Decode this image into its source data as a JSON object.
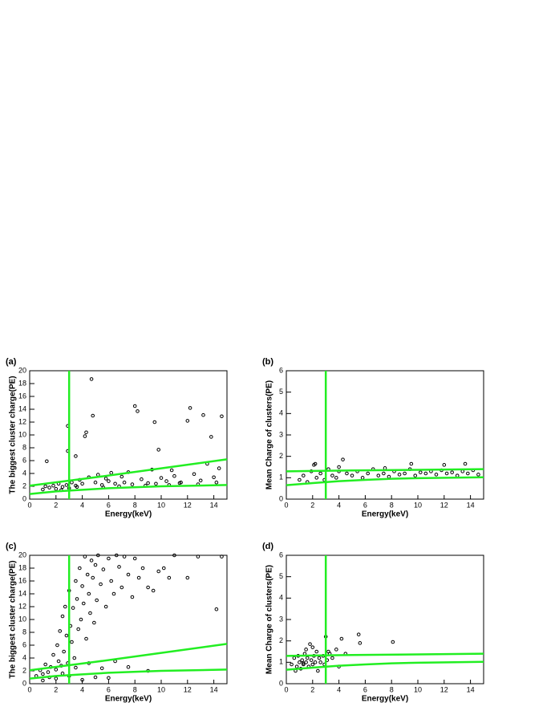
{
  "chart_data": [
    {
      "type": "scatter",
      "label": "(a)",
      "xlabel": "Energy(keV)",
      "ylabel": "The biggest cluster charge(PE)",
      "xlim": [
        0,
        15
      ],
      "ylim": [
        0,
        20
      ],
      "xticks": [
        0,
        2,
        4,
        6,
        8,
        10,
        12,
        14
      ],
      "yticks": [
        0,
        2,
        4,
        6,
        8,
        10,
        12,
        14,
        16,
        18,
        20
      ],
      "points": {
        "color": "#000000",
        "x": [
          1,
          1.5,
          1.8,
          2,
          2.2,
          2.5,
          2.8,
          3,
          3.2,
          3.5,
          3.8,
          4,
          4.2,
          4.3,
          4.5,
          4.7,
          4.8,
          5,
          5.2,
          5.5,
          5.8,
          6,
          6.2,
          6.5,
          7,
          7.2,
          7.5,
          8,
          8.2,
          8.5,
          9,
          9.3,
          9.5,
          10,
          10.4,
          10.8,
          11,
          11.5,
          12,
          12.2,
          12.5,
          13,
          13.5,
          13.8,
          14,
          14.4,
          14.6,
          2.9,
          2.9,
          1.3,
          3.5,
          9.8,
          13.2,
          1.2,
          2.4,
          3.6,
          5.6,
          6.8,
          7.8,
          8.8,
          9.6,
          10.6,
          11.4,
          12.8,
          14.2
        ],
        "y": [
          1.5,
          1.8,
          2.1,
          1.6,
          2.4,
          1.9,
          2.2,
          1.7,
          2.6,
          2.1,
          3.0,
          2.4,
          9.8,
          10.4,
          3.4,
          18.7,
          13,
          2.6,
          3.8,
          2.2,
          3.2,
          2.8,
          4.1,
          2.4,
          3.5,
          2.6,
          4.2,
          14.5,
          13.7,
          3.1,
          2.5,
          4.6,
          12,
          3.3,
          2.8,
          4.5,
          3.6,
          2.6,
          12.2,
          14.2,
          3.9,
          2.9,
          5.5,
          9.7,
          3.4,
          4.8,
          12.9,
          11.4,
          7.5,
          5.9,
          6.7,
          7.7,
          13.1,
          2.0,
          1.4,
          1.9,
          1.8,
          2.0,
          2.3,
          2.1,
          2.4,
          2.2,
          2.5,
          2.3,
          2.6
        ]
      },
      "lines": [
        {
          "color": "#22ee22",
          "x": [
            3,
            3
          ],
          "y": [
            0,
            20
          ]
        },
        {
          "color": "#22ee22",
          "x": [
            0,
            5,
            10,
            15
          ],
          "y": [
            2.1,
            3.4,
            4.8,
            6.2
          ]
        },
        {
          "color": "#22ee22",
          "x": [
            0,
            2,
            4,
            6,
            10,
            15
          ],
          "y": [
            0.8,
            1.2,
            1.45,
            1.7,
            2.0,
            2.2
          ]
        }
      ]
    },
    {
      "type": "scatter",
      "label": "(b)",
      "xlabel": "Energy(keV)",
      "ylabel": "Mean Charge of clusters(PE)",
      "xlim": [
        0,
        15
      ],
      "ylim": [
        0,
        6
      ],
      "xticks": [
        0,
        2,
        4,
        6,
        8,
        10,
        12,
        14
      ],
      "yticks": [
        0,
        1,
        2,
        3,
        4,
        5,
        6
      ],
      "points": {
        "color": "#000000",
        "x": [
          1,
          1.3,
          1.6,
          1.9,
          2.1,
          2.3,
          2.6,
          2.9,
          3.2,
          3.5,
          3.8,
          4,
          4.3,
          4.6,
          5,
          5.4,
          5.8,
          6.2,
          6.6,
          7,
          7.4,
          7.8,
          8.2,
          8.6,
          9,
          9.4,
          9.8,
          10.2,
          10.6,
          11,
          11.4,
          11.8,
          12.2,
          12.6,
          13,
          13.4,
          13.8,
          14.2,
          14.6,
          2.2,
          4,
          7.5,
          9.5,
          12,
          13.6
        ],
        "y": [
          0.9,
          1.1,
          0.8,
          1.3,
          1.6,
          1.0,
          1.2,
          0.9,
          1.4,
          1.1,
          1.0,
          1.3,
          1.85,
          1.2,
          1.1,
          1.3,
          1.0,
          1.2,
          1.4,
          1.1,
          1.2,
          1.05,
          1.3,
          1.15,
          1.2,
          1.4,
          1.1,
          1.25,
          1.2,
          1.3,
          1.15,
          1.35,
          1.2,
          1.25,
          1.1,
          1.3,
          1.2,
          1.35,
          1.15,
          1.65,
          1.5,
          1.45,
          1.65,
          1.6,
          1.65
        ]
      },
      "lines": [
        {
          "color": "#22ee22",
          "x": [
            3,
            3
          ],
          "y": [
            0,
            6
          ]
        },
        {
          "color": "#22ee22",
          "x": [
            0,
            5,
            10,
            15
          ],
          "y": [
            1.3,
            1.34,
            1.37,
            1.4
          ]
        },
        {
          "color": "#22ee22",
          "x": [
            0,
            2,
            4,
            6,
            8,
            10,
            15
          ],
          "y": [
            0.65,
            0.75,
            0.84,
            0.9,
            0.95,
            0.98,
            1.02
          ]
        }
      ]
    },
    {
      "type": "scatter",
      "label": "(c)",
      "xlabel": "Energy(keV)",
      "ylabel": "The biggest cluster charge(PE)",
      "xlim": [
        0,
        15
      ],
      "ylim": [
        0,
        20
      ],
      "xticks": [
        0,
        2,
        4,
        6,
        8,
        10,
        12,
        14
      ],
      "yticks": [
        0,
        2,
        4,
        6,
        8,
        10,
        12,
        14,
        16,
        18,
        20
      ],
      "points": {
        "color": "#000000",
        "x": [
          0.5,
          0.8,
          1,
          1.2,
          1.4,
          1.6,
          1.8,
          2,
          2.1,
          2.2,
          2.3,
          2.4,
          2.5,
          2.6,
          2.7,
          2.8,
          2.9,
          3,
          3.1,
          3.2,
          3.3,
          3.4,
          3.5,
          3.6,
          3.7,
          3.8,
          3.9,
          4,
          4.1,
          4.2,
          4.3,
          4.4,
          4.5,
          4.6,
          4.7,
          4.8,
          4.9,
          5,
          5.1,
          5.2,
          5.4,
          5.6,
          5.8,
          6,
          6.2,
          6.4,
          6.6,
          6.8,
          7,
          7.2,
          7.5,
          7.8,
          8,
          8.3,
          8.6,
          9,
          9.4,
          9.8,
          10.2,
          10.6,
          11,
          12,
          12.8,
          14.2,
          14.6,
          1.5,
          2.5,
          3.5,
          4.5,
          5.5,
          6.5,
          7.5,
          9,
          1,
          2,
          3,
          4,
          5,
          6
        ],
        "y": [
          1.2,
          2.1,
          1.5,
          3.0,
          1.8,
          2.6,
          4.5,
          2.2,
          6.0,
          3.5,
          8.2,
          2.8,
          10.5,
          5.0,
          12.0,
          7.5,
          3.2,
          14.5,
          9.0,
          6.5,
          11.8,
          4.0,
          16.0,
          13.2,
          8.5,
          18.0,
          10.0,
          15.2,
          12.5,
          19.8,
          7.0,
          17.0,
          14.0,
          11.0,
          19.2,
          16.5,
          9.5,
          18.5,
          13.0,
          20.0,
          15.5,
          17.8,
          12.0,
          19.5,
          16.0,
          14.0,
          20.0,
          18.2,
          15.0,
          19.8,
          17.0,
          13.5,
          19.5,
          16.5,
          18.0,
          15.0,
          14.5,
          17.5,
          18.0,
          16.5,
          20.0,
          16.5,
          19.8,
          11.6,
          19.8,
          1.0,
          1.6,
          2.5,
          3.2,
          2.4,
          3.5,
          2.6,
          2.0,
          0.5,
          0.8,
          1.2,
          0.6,
          1.0,
          0.9
        ]
      },
      "lines": [
        {
          "color": "#22ee22",
          "x": [
            3,
            3
          ],
          "y": [
            0,
            20
          ]
        },
        {
          "color": "#22ee22",
          "x": [
            0,
            5,
            10,
            15
          ],
          "y": [
            2.1,
            3.4,
            4.8,
            6.2
          ]
        },
        {
          "color": "#22ee22",
          "x": [
            0,
            2,
            4,
            6,
            10,
            15
          ],
          "y": [
            0.8,
            1.2,
            1.45,
            1.7,
            2.0,
            2.2
          ]
        }
      ]
    },
    {
      "type": "scatter",
      "label": "(d)",
      "xlabel": "Energy(keV)",
      "ylabel": "Mean Charge of clusters(PE)",
      "xlim": [
        0,
        15
      ],
      "ylim": [
        0,
        6
      ],
      "xticks": [
        0,
        2,
        4,
        6,
        8,
        10,
        12,
        14
      ],
      "yticks": [
        0,
        1,
        2,
        3,
        4,
        5,
        6
      ],
      "points": {
        "color": "#000000",
        "x": [
          0.4,
          0.6,
          0.8,
          0.9,
          1.0,
          1.1,
          1.2,
          1.3,
          1.4,
          1.5,
          1.6,
          1.7,
          1.8,
          1.9,
          2.0,
          2.1,
          2.2,
          2.3,
          2.4,
          2.5,
          2.6,
          2.8,
          2.9,
          3.0,
          3.1,
          3.2,
          3.3,
          3.5,
          3.8,
          4.0,
          4.2,
          4.5,
          5.5,
          5.6,
          8.1,
          1.5,
          2.0,
          0.7,
          1.3
        ],
        "y": [
          0.9,
          1.2,
          0.8,
          1.3,
          1.0,
          0.7,
          1.1,
          0.9,
          1.4,
          1.0,
          1.2,
          0.8,
          1.85,
          1.1,
          0.9,
          1.3,
          1.0,
          1.5,
          0.6,
          1.2,
          1.0,
          1.3,
          0.9,
          2.2,
          1.1,
          1.5,
          1.4,
          1.2,
          1.6,
          0.8,
          2.1,
          1.4,
          2.3,
          1.9,
          1.95,
          1.6,
          1.7,
          0.6,
          0.95
        ]
      },
      "lines": [
        {
          "color": "#22ee22",
          "x": [
            3,
            3
          ],
          "y": [
            0,
            6
          ]
        },
        {
          "color": "#22ee22",
          "x": [
            0,
            5,
            10,
            15
          ],
          "y": [
            1.3,
            1.34,
            1.37,
            1.4
          ]
        },
        {
          "color": "#22ee22",
          "x": [
            0,
            2,
            4,
            6,
            8,
            10,
            15
          ],
          "y": [
            0.65,
            0.75,
            0.84,
            0.9,
            0.95,
            0.98,
            1.02
          ]
        }
      ]
    }
  ]
}
